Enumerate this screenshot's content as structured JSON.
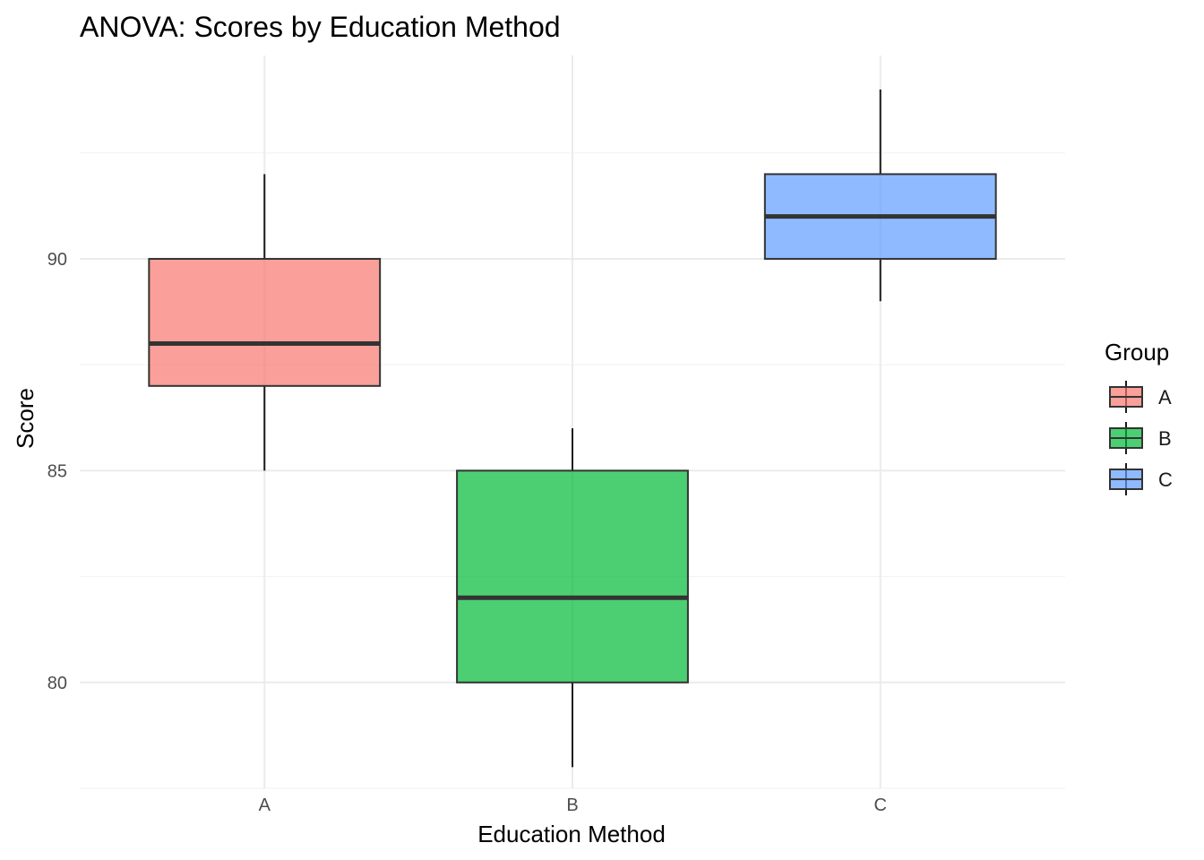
{
  "chart_data": {
    "type": "boxplot",
    "title": "ANOVA: Scores by Education Method",
    "xlabel": "Education Method",
    "ylabel": "Score",
    "categories": [
      "A",
      "B",
      "C"
    ],
    "yticks": [
      80,
      85,
      90
    ],
    "ylim": [
      77.5,
      94.8
    ],
    "grid": true,
    "boxes": [
      {
        "group": "A",
        "min": 85,
        "q1": 87,
        "median": 88,
        "q3": 90,
        "max": 92,
        "color": "#F8766D"
      },
      {
        "group": "B",
        "min": 78,
        "q1": 80,
        "median": 82,
        "q3": 85,
        "max": 86,
        "color": "#00BA38"
      },
      {
        "group": "C",
        "min": 89,
        "q1": 90,
        "median": 91,
        "q3": 92,
        "max": 94,
        "color": "#619CFF"
      }
    ],
    "legend": {
      "title": "Group",
      "position": "right",
      "entries": [
        {
          "label": "A",
          "color": "#F8766D"
        },
        {
          "label": "B",
          "color": "#00BA38"
        },
        {
          "label": "C",
          "color": "#619CFF"
        }
      ]
    }
  }
}
